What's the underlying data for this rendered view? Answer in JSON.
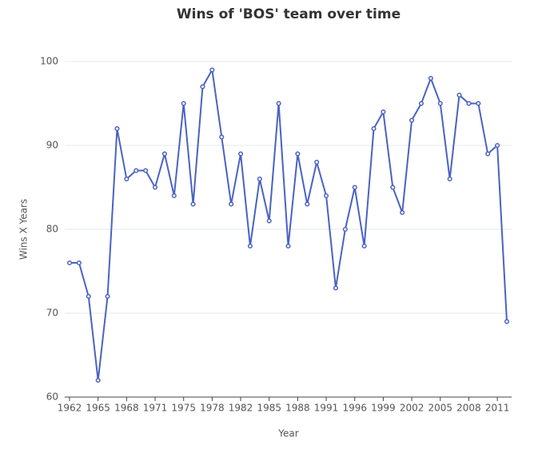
{
  "chart_data": {
    "type": "line",
    "title": "Wins of 'BOS' team over time",
    "x_label": "Year",
    "y_label": "Wins X Years",
    "categories": [
      "1962",
      null,
      null,
      "1965",
      null,
      null,
      "1968",
      null,
      null,
      "1971",
      null,
      null,
      "1975",
      null,
      null,
      "1978",
      null,
      null,
      "1982",
      null,
      null,
      "1985",
      null,
      null,
      "1988",
      null,
      null,
      "1991",
      null,
      null,
      "1996",
      null,
      null,
      "1999",
      null,
      null,
      "2002",
      null,
      null,
      "2005",
      null,
      null,
      "2008",
      null,
      null,
      "2011",
      null
    ],
    "values": [
      76,
      76,
      72,
      62,
      72,
      92,
      86,
      87,
      87,
      85,
      89,
      84,
      95,
      83,
      97,
      99,
      91,
      83,
      89,
      78,
      86,
      81,
      95,
      78,
      89,
      83,
      88,
      84,
      73,
      80,
      85,
      78,
      92,
      94,
      85,
      82,
      93,
      95,
      98,
      95,
      86,
      96,
      95,
      95,
      89,
      90,
      69
    ],
    "color": "#4a62c3",
    "ylim": [
      60,
      100
    ],
    "yticks": [
      60,
      70,
      80,
      90,
      100
    ],
    "grid": true
  }
}
